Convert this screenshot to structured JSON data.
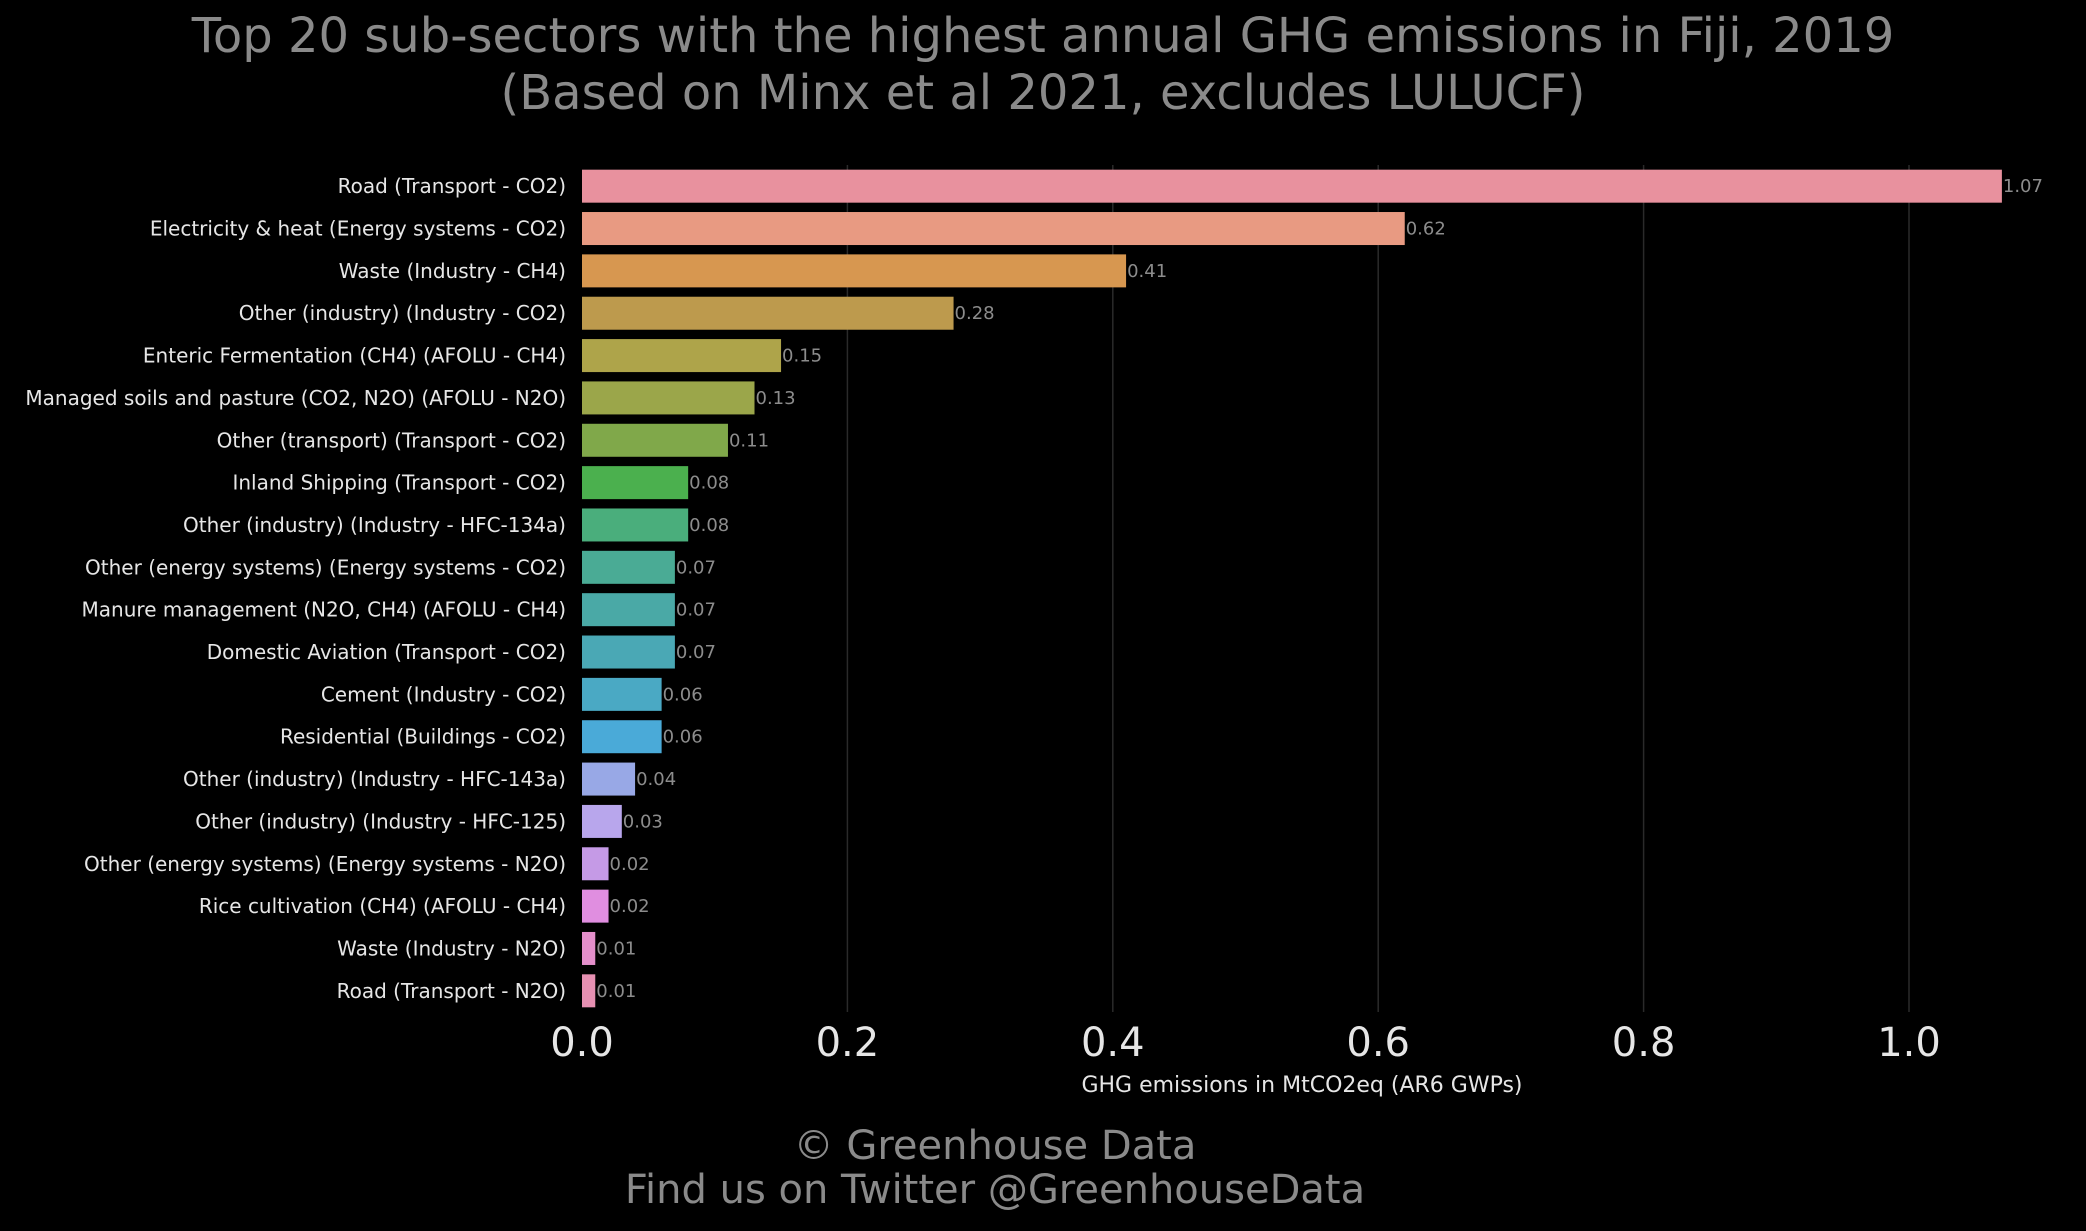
{
  "title_lines": [
    "Top 20 sub-sectors with the highest annual GHG emissions in Fiji, 2019",
    "(Based on Minx et al 2021, excludes LULUCF)"
  ],
  "footer": {
    "copyright": "© Greenhouse Data",
    "twitter": "Find us on Twitter @GreenhouseData"
  },
  "chart_data": {
    "type": "bar",
    "orientation": "horizontal",
    "categories": [
      "Road (Transport - CO2)",
      "Electricity & heat (Energy systems - CO2)",
      "Waste (Industry - CH4)",
      "Other (industry) (Industry - CO2)",
      "Enteric Fermentation (CH4) (AFOLU - CH4)",
      "Managed soils and pasture (CO2, N2O) (AFOLU - N2O)",
      "Other (transport) (Transport - CO2)",
      "Inland Shipping (Transport - CO2)",
      "Other (industry) (Industry - HFC-134a)",
      "Other (energy systems) (Energy systems - CO2)",
      "Manure management (N2O, CH4) (AFOLU - CH4)",
      "Domestic Aviation (Transport - CO2)",
      "Cement (Industry - CO2)",
      "Residential (Buildings - CO2)",
      "Other (industry) (Industry - HFC-143a)",
      "Other (industry) (Industry - HFC-125)",
      "Other (energy systems) (Energy systems - N2O)",
      "Rice cultivation (CH4) (AFOLU - CH4)",
      "Waste (Industry - N2O)",
      "Road (Transport - N2O)"
    ],
    "values": [
      1.07,
      0.62,
      0.41,
      0.28,
      0.15,
      0.13,
      0.11,
      0.08,
      0.08,
      0.07,
      0.07,
      0.07,
      0.06,
      0.06,
      0.04,
      0.03,
      0.02,
      0.02,
      0.01,
      0.01
    ],
    "value_labels": [
      "1.07",
      "0.62",
      "0.41",
      "0.28",
      "0.15",
      "0.13",
      "0.11",
      "0.08",
      "0.08",
      "0.07",
      "0.07",
      "0.07",
      "0.06",
      "0.06",
      "0.04",
      "0.03",
      "0.02",
      "0.02",
      "0.01",
      "0.01"
    ],
    "colors": [
      "#e8919e",
      "#e89a82",
      "#d79750",
      "#bd9a4d",
      "#aea44a",
      "#9ba64a",
      "#80a84a",
      "#4bb04e",
      "#4aae7c",
      "#4aab95",
      "#4aa9a6",
      "#4aa8b5",
      "#4aa9c4",
      "#4aaad8",
      "#98a8e6",
      "#b8a6ec",
      "#c59ae6",
      "#e08ee0",
      "#e48fcb",
      "#e690b2"
    ],
    "xlabel": "GHG emissions in MtCO2eq (AR6 GWPs)",
    "xlim": [
      0,
      1.07
    ],
    "xticks": [
      0.0,
      0.2,
      0.4,
      0.6,
      0.8,
      1.0
    ],
    "xtick_labels": [
      "0.0",
      "0.2",
      "0.4",
      "0.6",
      "0.8",
      "1.0"
    ],
    "grid": true,
    "legend": "none"
  }
}
